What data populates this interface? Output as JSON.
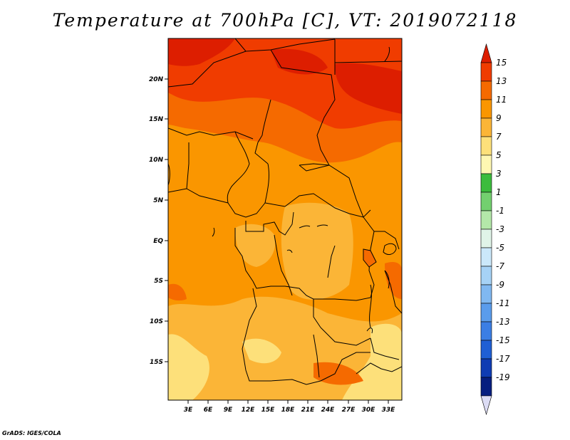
{
  "title": "Temperature at 700hPa [C], VT: 2019072118",
  "credit": "GrADS: IGES/COLA",
  "map": {
    "variable": "Temperature at 700hPa",
    "units": "C",
    "valid_time": "2019072118",
    "lon_ticks": [
      "3E",
      "6E",
      "9E",
      "12E",
      "15E",
      "18E",
      "21E",
      "24E",
      "27E",
      "30E",
      "33E"
    ],
    "lat_ticks": [
      "20N",
      "15N",
      "10N",
      "5N",
      "EQ",
      "5S",
      "10S",
      "15S"
    ]
  },
  "colorbar": {
    "labels": [
      "15",
      "13",
      "11",
      "9",
      "7",
      "5",
      "3",
      "1",
      "-1",
      "-3",
      "-5",
      "-7",
      "-9",
      "-11",
      "-13",
      "-15",
      "-17",
      "-19"
    ],
    "colors": [
      "#dd1e00",
      "#f03c00",
      "#f56a00",
      "#fa9600",
      "#fbb537",
      "#fde07a",
      "#fef7b2",
      "#3cbc3d",
      "#73d06f",
      "#b4e8a9",
      "#e0f4e8",
      "#cbe8fa",
      "#a6d2f6",
      "#80b8f1",
      "#5a9cec",
      "#3b7ee4",
      "#1f5fd4",
      "#0f3cb3",
      "#061e7f",
      "#dcdcf4"
    ]
  }
}
